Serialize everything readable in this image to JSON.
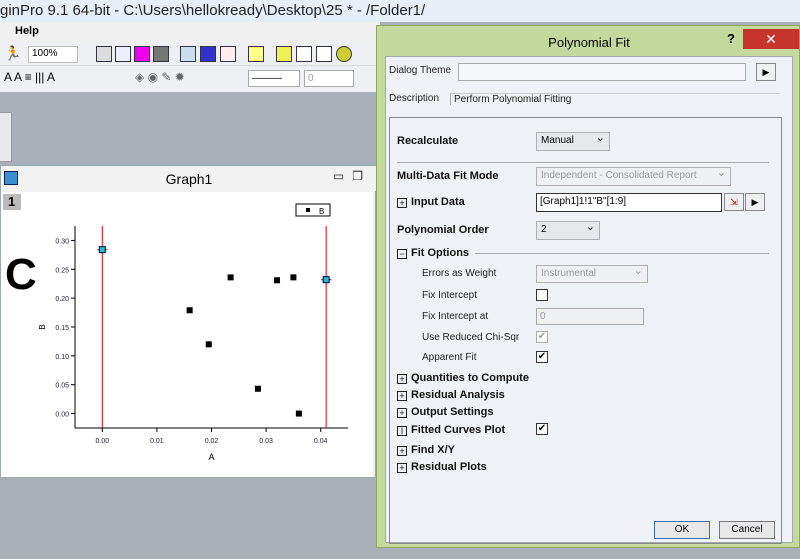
{
  "app": {
    "title": "ginPro 9.1 64-bit - C:\\Users\\hellokready\\Desktop\\25 * - /Folder1/",
    "menu": [
      "Help"
    ],
    "zoom": "100%",
    "line_width": "0"
  },
  "graph": {
    "title": "Graph1",
    "layer": "1",
    "annotation": "C"
  },
  "chart_data": {
    "type": "scatter",
    "xlabel": "A",
    "ylabel": "B",
    "xlim": [
      -0.005,
      0.045
    ],
    "ylim": [
      -0.025,
      0.325
    ],
    "xticks": [
      "0.00",
      "0.01",
      "0.02",
      "0.03",
      "0.04"
    ],
    "yticks": [
      "0.00",
      "0.05",
      "0.10",
      "0.15",
      "0.20",
      "0.25",
      "0.30"
    ],
    "legend": {
      "entries": [
        "B"
      ],
      "position": "top-right"
    },
    "series": [
      {
        "name": "B",
        "x": [
          0.0,
          0.016,
          0.0195,
          0.0235,
          0.0285,
          0.032,
          0.035,
          0.036,
          0.041
        ],
        "y": [
          0.284,
          0.179,
          0.12,
          0.236,
          0.043,
          0.231,
          0.236,
          0.0,
          0.232
        ]
      }
    ],
    "range_markers_x": [
      0.0,
      0.041
    ],
    "marker_color": "#000000",
    "range_line_color": "#e00000",
    "selected_point_color": "#20c0d0"
  },
  "dialog": {
    "title": "Polynomial Fit",
    "help": "?",
    "close": "✕",
    "theme_label": "Dialog Theme",
    "theme_value": "",
    "description_label": "Description",
    "description": "Perform Polynomial Fitting",
    "recalculate_label": "Recalculate",
    "recalculate": "Manual",
    "multi_label": "Multi-Data Fit Mode",
    "multi": "Independent - Consolidated Report",
    "input_label": "Input Data",
    "input": "[Graph1]1!1\"B\"[1:9]",
    "order_label": "Polynomial Order",
    "order": "2",
    "fit_options": "Fit Options",
    "errors_label": "Errors as Weight",
    "errors": "Instrumental",
    "fix_intercept_label": "Fix Intercept",
    "fix_at_label": "Fix Intercept at",
    "fix_at": "0",
    "reduced_label": "Use Reduced Chi-Sqr",
    "apparent_label": "Apparent Fit",
    "sections": [
      "Quantities to Compute",
      "Residual Analysis",
      "Output Settings"
    ],
    "fitted_label": "Fitted Curves Plot",
    "sections2": [
      "Find X/Y",
      "Residual Plots"
    ],
    "ok": "OK",
    "cancel": "Cancel"
  }
}
